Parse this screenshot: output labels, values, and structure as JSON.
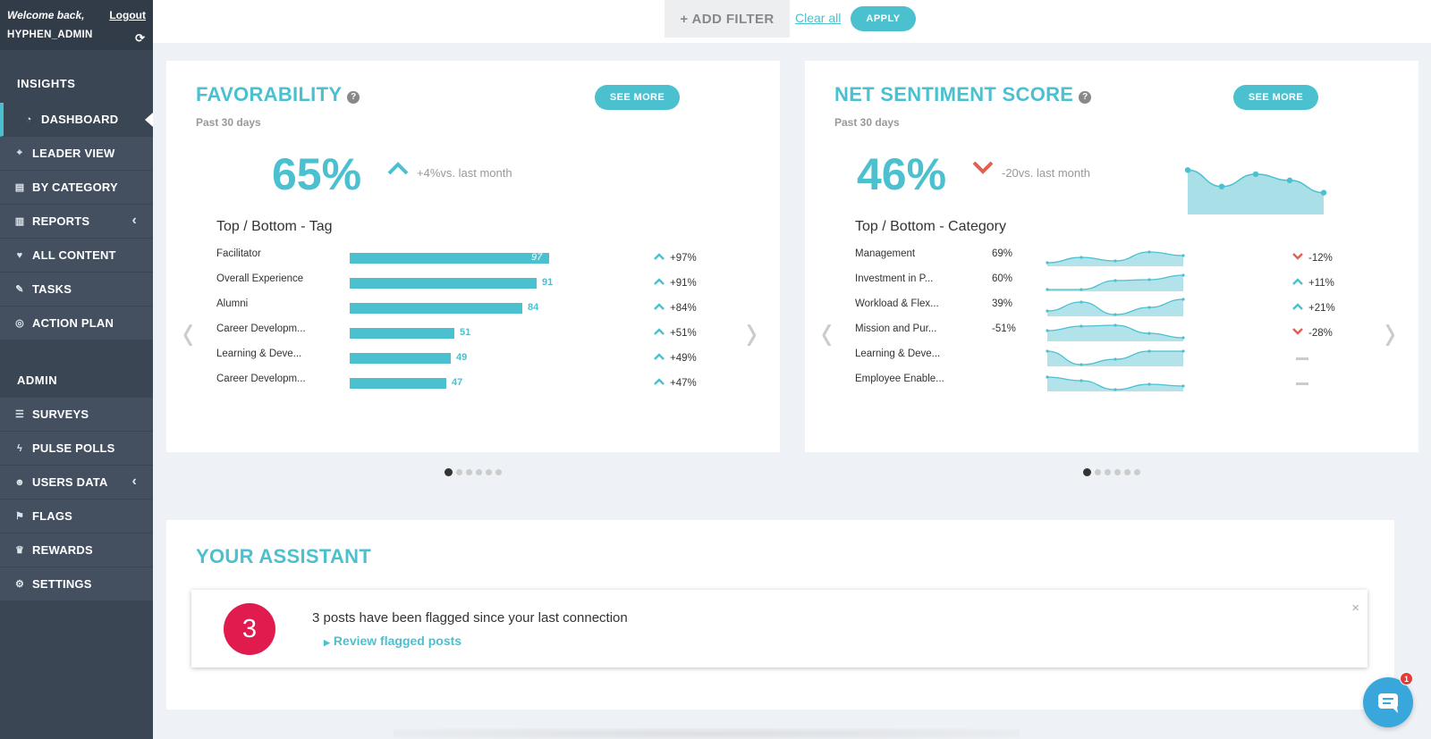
{
  "sidebar": {
    "welcome": "Welcome back,",
    "logout": "Logout",
    "username": "HYPHEN_ADMIN",
    "insights_heading": "INSIGHTS",
    "insights_items": [
      {
        "label": "DASHBOARD",
        "icon": "dashboard-icon"
      },
      {
        "label": "LEADER VIEW",
        "icon": "crosshair-icon"
      },
      {
        "label": "BY CATEGORY",
        "icon": "book-icon"
      },
      {
        "label": "REPORTS",
        "icon": "bar-chart-icon"
      },
      {
        "label": "ALL CONTENT",
        "icon": "heart-icon"
      },
      {
        "label": "TASKS",
        "icon": "wrench-icon"
      },
      {
        "label": "ACTION PLAN",
        "icon": "target-icon"
      }
    ],
    "admin_heading": "ADMIN",
    "admin_items": [
      {
        "label": "SURVEYS",
        "icon": "surveys-icon"
      },
      {
        "label": "PULSE POLLS",
        "icon": "bolt-icon"
      },
      {
        "label": "USERS DATA",
        "icon": "users-icon"
      },
      {
        "label": "FLAGS",
        "icon": "flag-icon"
      },
      {
        "label": "REWARDS",
        "icon": "crown-icon"
      },
      {
        "label": "SETTINGS",
        "icon": "gear-icon"
      }
    ]
  },
  "filterbar": {
    "add_filter": "+ ADD FILTER",
    "clear_all": "Clear all",
    "apply": "APPLY"
  },
  "favorability": {
    "title": "FAVORABILITY",
    "subtitle": "Past 30 days",
    "see_more": "SEE MORE",
    "value": "65%",
    "trend": "+4%vs. last month",
    "trend_direction": "up",
    "section_title": "Top / Bottom - Tag",
    "rows": [
      {
        "label": "Facilitator",
        "value": 97,
        "change": "+97%"
      },
      {
        "label": "Overall Experience",
        "value": 91,
        "change": "+91%"
      },
      {
        "label": "Alumni",
        "value": 84,
        "change": "+84%"
      },
      {
        "label": "Career Developm...",
        "value": 51,
        "change": "+51%"
      },
      {
        "label": "Learning & Deve...",
        "value": 49,
        "change": "+49%"
      },
      {
        "label": "Career Developm...",
        "value": 47,
        "change": "+47%"
      }
    ],
    "pages": 6,
    "current_page": 1
  },
  "nss": {
    "title": "NET SENTIMENT SCORE",
    "subtitle": "Past 30 days",
    "see_more": "SEE MORE",
    "value": "46%",
    "trend": "-20vs. last month",
    "trend_direction": "down",
    "section_title": "Top / Bottom - Category",
    "trend_series": [
      0.95,
      0.55,
      0.85,
      0.7,
      0.4
    ],
    "rows": [
      {
        "label": "Management",
        "pct": "69%",
        "change": "-12%",
        "dir": "down",
        "spark": [
          0.2,
          0.5,
          0.3,
          0.8,
          0.6
        ]
      },
      {
        "label": "Investment in P...",
        "pct": "60%",
        "change": "+11%",
        "dir": "up",
        "spark": [
          0.1,
          0.1,
          0.6,
          0.65,
          0.9
        ]
      },
      {
        "label": "Workload & Flex...",
        "pct": "39%",
        "change": "+21%",
        "dir": "up",
        "spark": [
          0.3,
          0.8,
          0.1,
          0.5,
          0.95
        ]
      },
      {
        "label": "Mission and Pur...",
        "pct": "-51%",
        "change": "-28%",
        "dir": "down",
        "spark": [
          0.6,
          0.85,
          0.9,
          0.45,
          0.2
        ]
      },
      {
        "label": "Learning & Deve...",
        "pct": "",
        "change": "",
        "dir": "none",
        "spark": [
          0.85,
          0.1,
          0.4,
          0.85,
          0.85
        ]
      },
      {
        "label": "Employee Enable...",
        "pct": "",
        "change": "",
        "dir": "none",
        "spark": [
          0.8,
          0.6,
          0.1,
          0.4,
          0.3
        ]
      }
    ],
    "pages": 6,
    "current_page": 1
  },
  "assistant": {
    "title": "YOUR ASSISTANT",
    "count": "3",
    "message": "3 posts have been flagged since your last connection",
    "link": "Review flagged posts",
    "close": "×"
  },
  "chat": {
    "badge": "1"
  },
  "colors": {
    "accent": "#4bc0cf",
    "sidebar": "#3b4655",
    "down": "#e2604f",
    "alert": "#e01c4f"
  }
}
